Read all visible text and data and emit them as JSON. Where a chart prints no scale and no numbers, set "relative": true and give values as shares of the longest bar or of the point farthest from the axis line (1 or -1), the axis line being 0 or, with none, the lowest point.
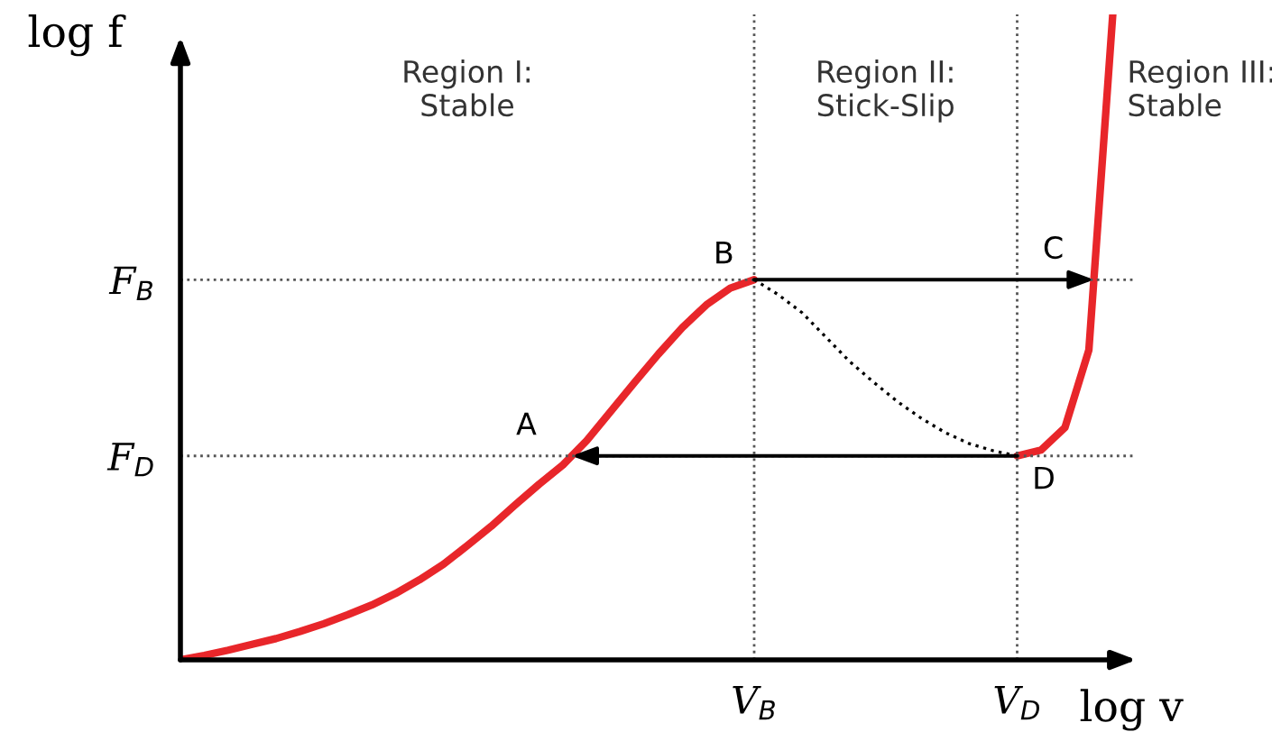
{
  "chart_data": {
    "type": "line",
    "relative": true,
    "xlabel": "log v",
    "ylabel": "log f",
    "grid": false,
    "categories": [
      null,
      null,
      null,
      null,
      null,
      null,
      null,
      null,
      null,
      null,
      null,
      null,
      null,
      null,
      null,
      null,
      null,
      null,
      null,
      null,
      null,
      null,
      null,
      null,
      null,
      null,
      null,
      null,
      null,
      null,
      null,
      null,
      null,
      null,
      null,
      null,
      null,
      null,
      null,
      null,
      null
    ],
    "series": [
      {
        "color": "#e8262a",
        "line_style": "solid",
        "values": [
          0,
          0.007,
          0.015,
          0.024,
          0.033,
          0.044,
          0.056,
          0.07,
          0.085,
          0.103,
          0.124,
          0.148,
          0.177,
          0.207,
          0.24,
          0.272,
          0.302,
          0.34,
          0.385,
          0.43,
          0.474,
          0.515,
          0.55,
          0.576,
          0.589,
          null,
          null,
          null,
          null,
          null,
          null,
          null,
          null,
          null,
          null,
          0.316,
          0.325,
          0.36,
          0.48,
          1.0,
          null
        ]
      },
      {
        "color": "#000000",
        "line_style": "dotted",
        "values": [
          null,
          null,
          null,
          null,
          null,
          null,
          null,
          null,
          null,
          null,
          null,
          null,
          null,
          null,
          null,
          null,
          null,
          null,
          null,
          null,
          null,
          null,
          null,
          null,
          0.589,
          0.566,
          0.538,
          0.5,
          0.462,
          0.43,
          0.4,
          0.374,
          0.352,
          0.335,
          0.324,
          0.316,
          null,
          null,
          null,
          null,
          null
        ]
      }
    ],
    "ref_lines": [
      {
        "axis": "y",
        "value": 0.589,
        "label": "F$_{B}$",
        "line_style": "dotted"
      },
      {
        "axis": "y",
        "value": 0.316,
        "label": "F$_{D}$",
        "line_style": "dotted"
      },
      {
        "axis": "x",
        "label": "V$_{B}$",
        "line_style": "dotted"
      },
      {
        "axis": "x",
        "label": "V$_{D}$",
        "line_style": "dotted"
      }
    ],
    "annotations": [
      "A",
      "B",
      "C",
      "D",
      "Region I:\nStable",
      "Region II:\nStick-Slip",
      "Region III:\nStable"
    ]
  }
}
